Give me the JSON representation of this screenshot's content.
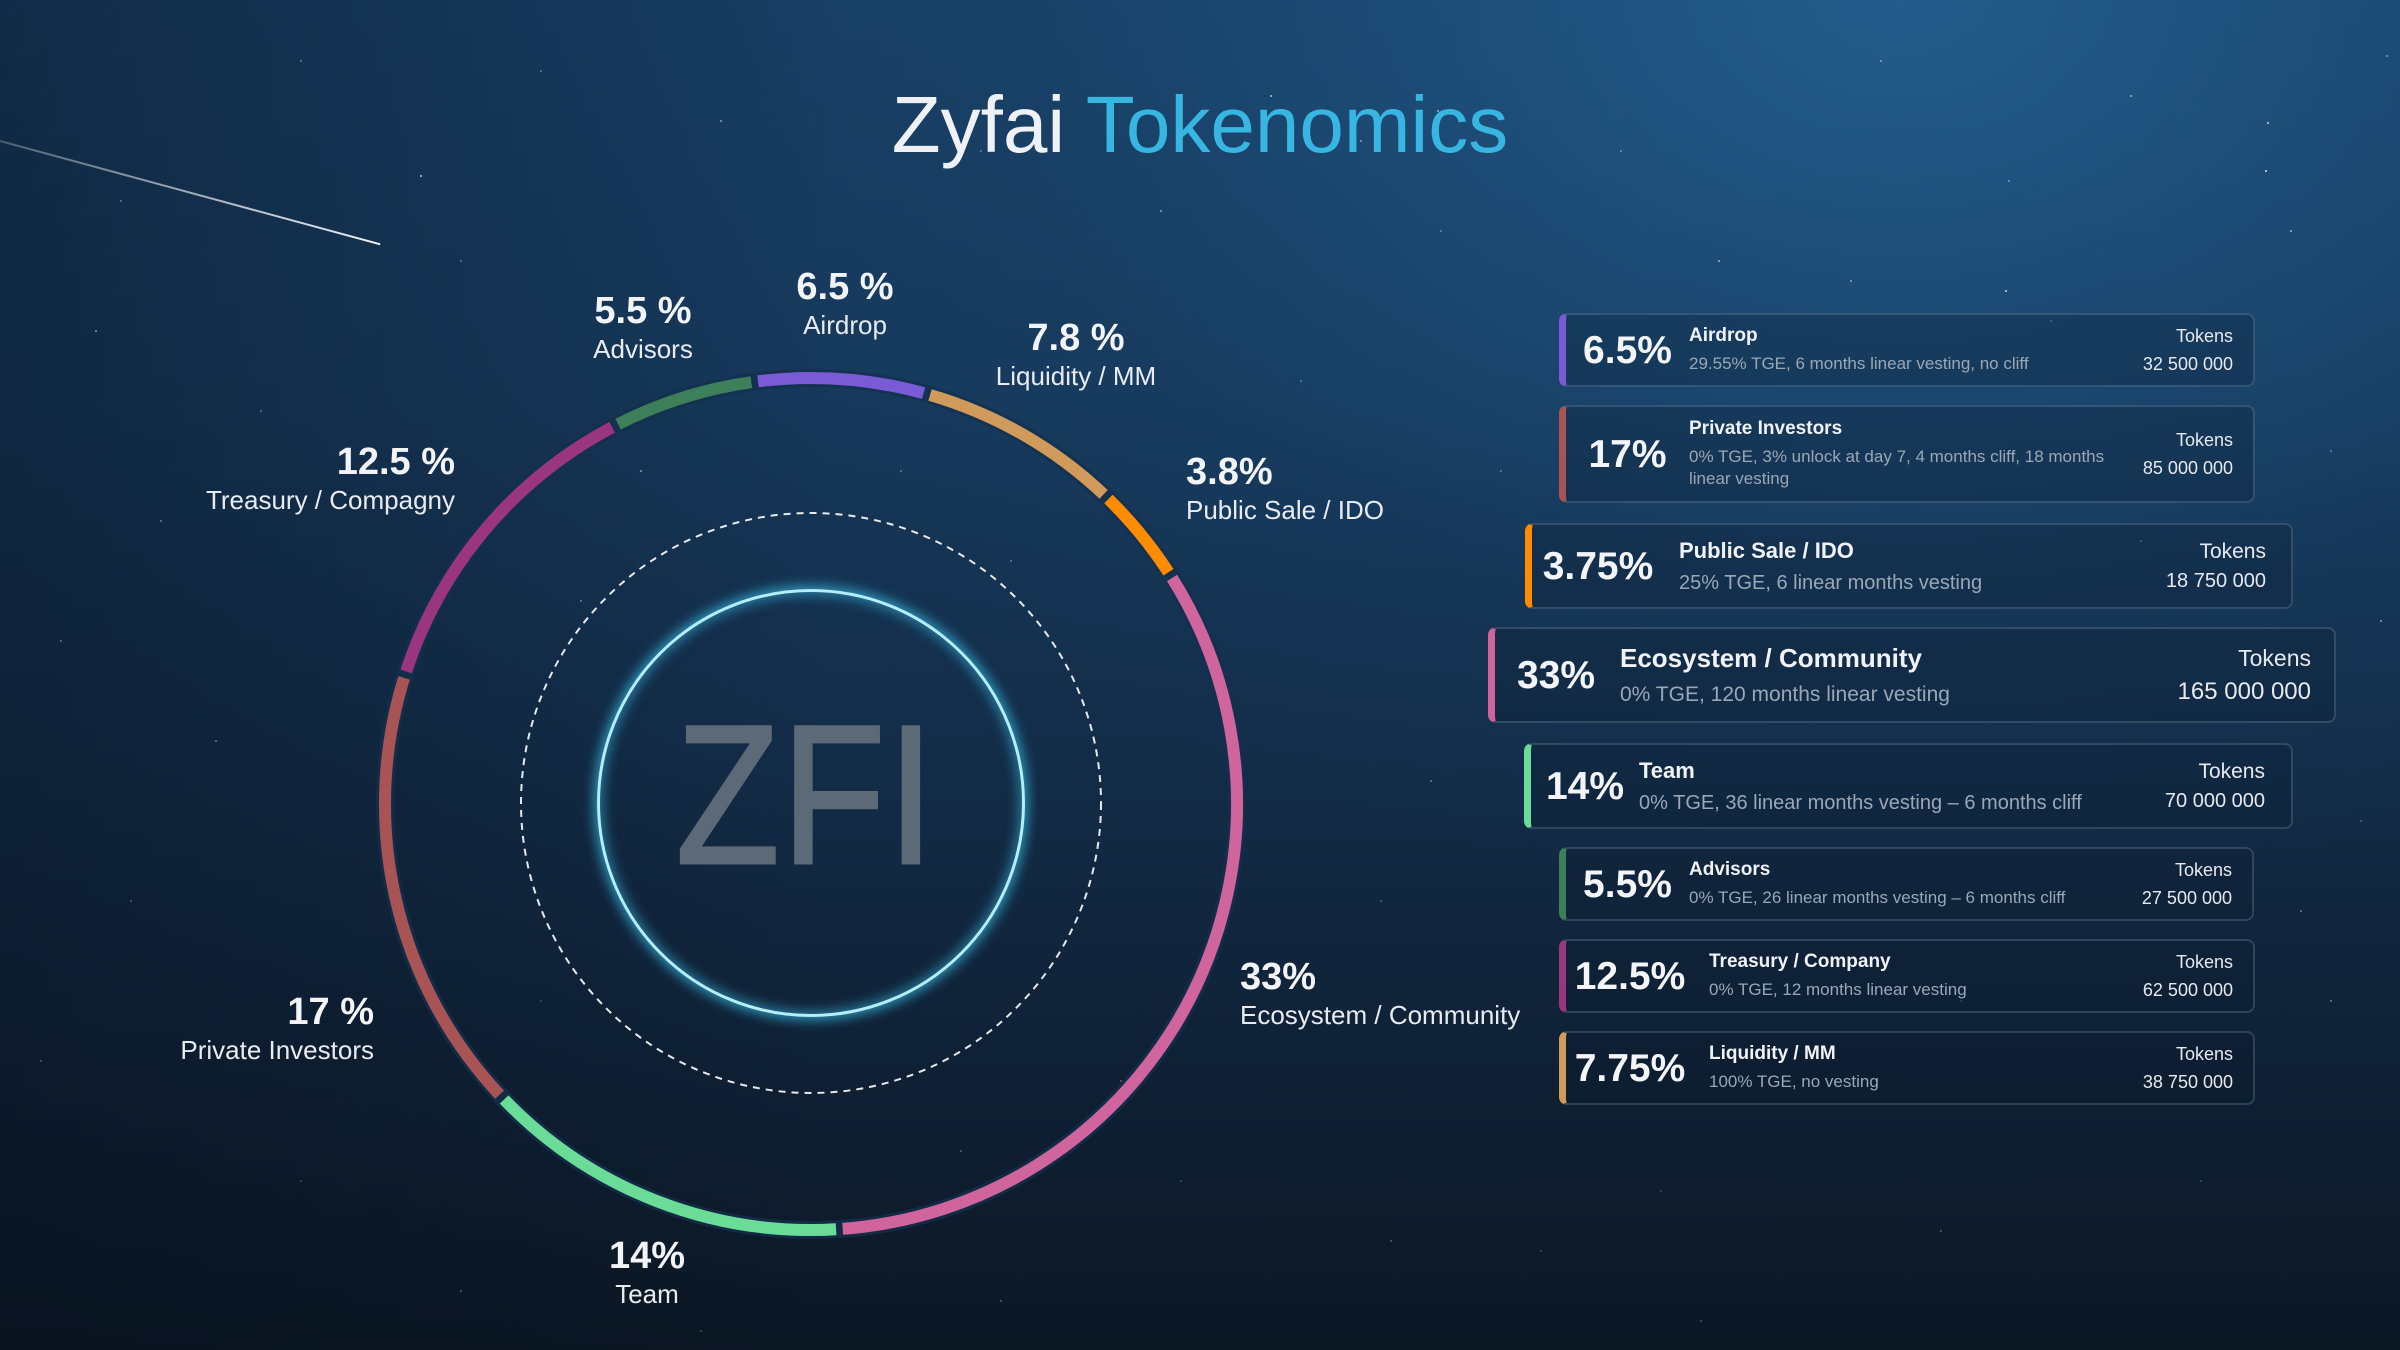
{
  "title": {
    "part1": "Zyfai",
    "part2": "Tokenomics"
  },
  "colors": {
    "title_primary": "#eef1f5",
    "title_accent": "#38b6e2",
    "center_ring": "#b4eefa"
  },
  "chart_data": {
    "type": "pie",
    "style": "donut",
    "title": "Zyfai Tokenomics",
    "center_label": "ZFI",
    "unit": "%",
    "categories": [
      "Airdrop",
      "Liquidity / MM",
      "Public Sale / IDO",
      "Ecosystem / Community",
      "Team",
      "Private Investors",
      "Treasury / Compagny",
      "Advisors"
    ],
    "values": [
      6.5,
      7.8,
      3.8,
      33,
      14,
      17,
      12.5,
      5.5
    ],
    "colors": [
      "#7a5bd5",
      "#cf9a5a",
      "#ff8c00",
      "#d0649c",
      "#6bdc98",
      "#a85454",
      "#9a3680",
      "#3d7f58"
    ],
    "labels": [
      {
        "percent": "6.5 %",
        "name": "Airdrop"
      },
      {
        "percent": "7.8 %",
        "name": "Liquidity / MM"
      },
      {
        "percent": "3.8%",
        "name": "Public Sale / IDO"
      },
      {
        "percent": "33%",
        "name": "Ecosystem / Community"
      },
      {
        "percent": "14%",
        "name": "Team"
      },
      {
        "percent": "17 %",
        "name": "Private Investors"
      },
      {
        "percent": "12.5 %",
        "name": "Treasury / Compagny"
      },
      {
        "percent": "5.5 %",
        "name": "Advisors"
      }
    ]
  },
  "allocations": [
    {
      "percent": "6.5%",
      "name": "Airdrop",
      "vesting": "29.55% TGE, 6 months linear vesting, no cliff",
      "tokens_label": "Tokens",
      "tokens": "32 500 000",
      "color": "#7a5bd5"
    },
    {
      "percent": "17%",
      "name": "Private Investors",
      "vesting": "0% TGE, 3% unlock at day 7, 4 months cliff, 18 months linear vesting",
      "tokens_label": "Tokens",
      "tokens": "85 000 000",
      "color": "#a85454"
    },
    {
      "percent": "3.75%",
      "name": "Public Sale / IDO",
      "vesting": "25% TGE, 6 linear months vesting",
      "tokens_label": "Tokens",
      "tokens": "18 750 000",
      "color": "#ff8c00"
    },
    {
      "percent": "33%",
      "name": "Ecosystem / Community",
      "vesting": "0% TGE, 120 months linear vesting",
      "tokens_label": "Tokens",
      "tokens": "165 000 000",
      "color": "#d0649c"
    },
    {
      "percent": "14%",
      "name": "Team",
      "vesting": "0% TGE, 36 linear months vesting – 6 months cliff",
      "tokens_label": "Tokens",
      "tokens": "70 000 000",
      "color": "#6bdc98"
    },
    {
      "percent": "5.5%",
      "name": "Advisors",
      "vesting": "0% TGE, 26 linear months vesting – 6 months cliff",
      "tokens_label": "Tokens",
      "tokens": "27 500 000",
      "color": "#3d7f58"
    },
    {
      "percent": "12.5%",
      "name": "Treasury / Company",
      "vesting": "0% TGE, 12 months linear vesting",
      "tokens_label": "Tokens",
      "tokens": "62 500 000",
      "color": "#9a3680"
    },
    {
      "percent": "7.75%",
      "name": "Liquidity / MM",
      "vesting": "100% TGE, no vesting",
      "tokens_label": "Tokens",
      "tokens": "38 750 000",
      "color": "#cf9a5a"
    }
  ]
}
